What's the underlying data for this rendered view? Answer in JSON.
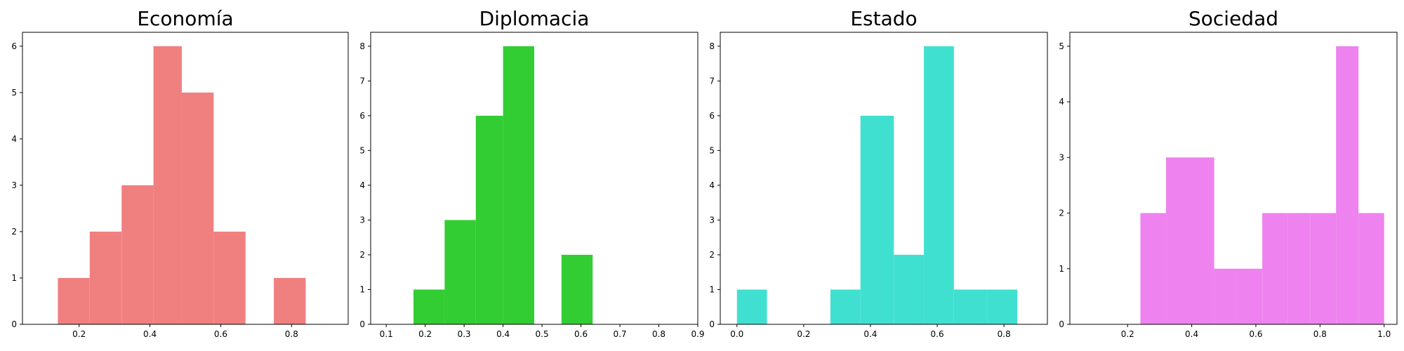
{
  "chart_data": [
    {
      "type": "bar",
      "title": "Economía",
      "color": "#f08080",
      "xlim": [
        0.04,
        0.96
      ],
      "ylim": [
        0,
        6.3
      ],
      "xticks": [
        0.2,
        0.4,
        0.6,
        0.8
      ],
      "xtick_labels": [
        "0.2",
        "0.4",
        "0.6",
        "0.8"
      ],
      "yticks": [
        0,
        1,
        2,
        3,
        4,
        5,
        6
      ],
      "ytick_labels": [
        "0",
        "1",
        "2",
        "3",
        "4",
        "5",
        "6"
      ],
      "bins": [
        {
          "x0": 0.14,
          "x1": 0.23,
          "value": 1
        },
        {
          "x0": 0.23,
          "x1": 0.32,
          "value": 2
        },
        {
          "x0": 0.32,
          "x1": 0.41,
          "value": 3
        },
        {
          "x0": 0.41,
          "x1": 0.49,
          "value": 6
        },
        {
          "x0": 0.49,
          "x1": 0.58,
          "value": 5
        },
        {
          "x0": 0.58,
          "x1": 0.67,
          "value": 2
        },
        {
          "x0": 0.67,
          "x1": 0.75,
          "value": 0
        },
        {
          "x0": 0.75,
          "x1": 0.84,
          "value": 1
        }
      ]
    },
    {
      "type": "bar",
      "title": "Diplomacia",
      "color": "#32cd32",
      "xlim": [
        0.06,
        0.9
      ],
      "ylim": [
        0,
        8.4
      ],
      "xticks": [
        0.1,
        0.2,
        0.3,
        0.4,
        0.5,
        0.6,
        0.7,
        0.8,
        0.9
      ],
      "xtick_labels": [
        "0.1",
        "0.2",
        "0.3",
        "0.4",
        "0.5",
        "0.6",
        "0.7",
        "0.8",
        "0.9"
      ],
      "yticks": [
        0,
        1,
        2,
        3,
        4,
        5,
        6,
        7,
        8
      ],
      "ytick_labels": [
        "0",
        "1",
        "2",
        "3",
        "4",
        "5",
        "6",
        "7",
        "8"
      ],
      "bins": [
        {
          "x0": 0.17,
          "x1": 0.25,
          "value": 1
        },
        {
          "x0": 0.25,
          "x1": 0.33,
          "value": 3
        },
        {
          "x0": 0.33,
          "x1": 0.4,
          "value": 6
        },
        {
          "x0": 0.4,
          "x1": 0.48,
          "value": 8
        },
        {
          "x0": 0.48,
          "x1": 0.55,
          "value": 0
        },
        {
          "x0": 0.55,
          "x1": 0.63,
          "value": 2
        }
      ]
    },
    {
      "type": "bar",
      "title": "Estado",
      "color": "#40e0d0",
      "xlim": [
        -0.05,
        0.93
      ],
      "ylim": [
        0,
        8.4
      ],
      "xticks": [
        0.0,
        0.2,
        0.4,
        0.6,
        0.8
      ],
      "xtick_labels": [
        "0.0",
        "0.2",
        "0.4",
        "0.6",
        "0.8"
      ],
      "yticks": [
        0,
        1,
        2,
        3,
        4,
        5,
        6,
        7,
        8
      ],
      "ytick_labels": [
        "0",
        "1",
        "2",
        "3",
        "4",
        "5",
        "6",
        "7",
        "8"
      ],
      "bins": [
        {
          "x0": 0.0,
          "x1": 0.09,
          "value": 1
        },
        {
          "x0": 0.09,
          "x1": 0.19,
          "value": 0
        },
        {
          "x0": 0.19,
          "x1": 0.28,
          "value": 0
        },
        {
          "x0": 0.28,
          "x1": 0.37,
          "value": 1
        },
        {
          "x0": 0.37,
          "x1": 0.47,
          "value": 6
        },
        {
          "x0": 0.47,
          "x1": 0.56,
          "value": 2
        },
        {
          "x0": 0.56,
          "x1": 0.65,
          "value": 8
        },
        {
          "x0": 0.65,
          "x1": 0.75,
          "value": 1
        },
        {
          "x0": 0.75,
          "x1": 0.84,
          "value": 1
        }
      ]
    },
    {
      "type": "bar",
      "title": "Sociedad",
      "color": "#ee82ee",
      "xlim": [
        0.02,
        1.04
      ],
      "ylim": [
        0,
        5.25
      ],
      "xticks": [
        0.2,
        0.4,
        0.6,
        0.8,
        1.0
      ],
      "xtick_labels": [
        "0.2",
        "0.4",
        "0.6",
        "0.8",
        "1.0"
      ],
      "yticks": [
        0,
        1,
        2,
        3,
        4,
        5
      ],
      "ytick_labels": [
        "0",
        "1",
        "2",
        "3",
        "4",
        "5"
      ],
      "bins": [
        {
          "x0": 0.24,
          "x1": 0.32,
          "value": 2
        },
        {
          "x0": 0.32,
          "x1": 0.39,
          "value": 3
        },
        {
          "x0": 0.39,
          "x1": 0.47,
          "value": 3
        },
        {
          "x0": 0.47,
          "x1": 0.54,
          "value": 1
        },
        {
          "x0": 0.54,
          "x1": 0.62,
          "value": 1
        },
        {
          "x0": 0.62,
          "x1": 0.7,
          "value": 2
        },
        {
          "x0": 0.7,
          "x1": 0.77,
          "value": 2
        },
        {
          "x0": 0.77,
          "x1": 0.85,
          "value": 2
        },
        {
          "x0": 0.85,
          "x1": 0.92,
          "value": 5
        },
        {
          "x0": 0.92,
          "x1": 1.0,
          "value": 2
        }
      ]
    }
  ]
}
